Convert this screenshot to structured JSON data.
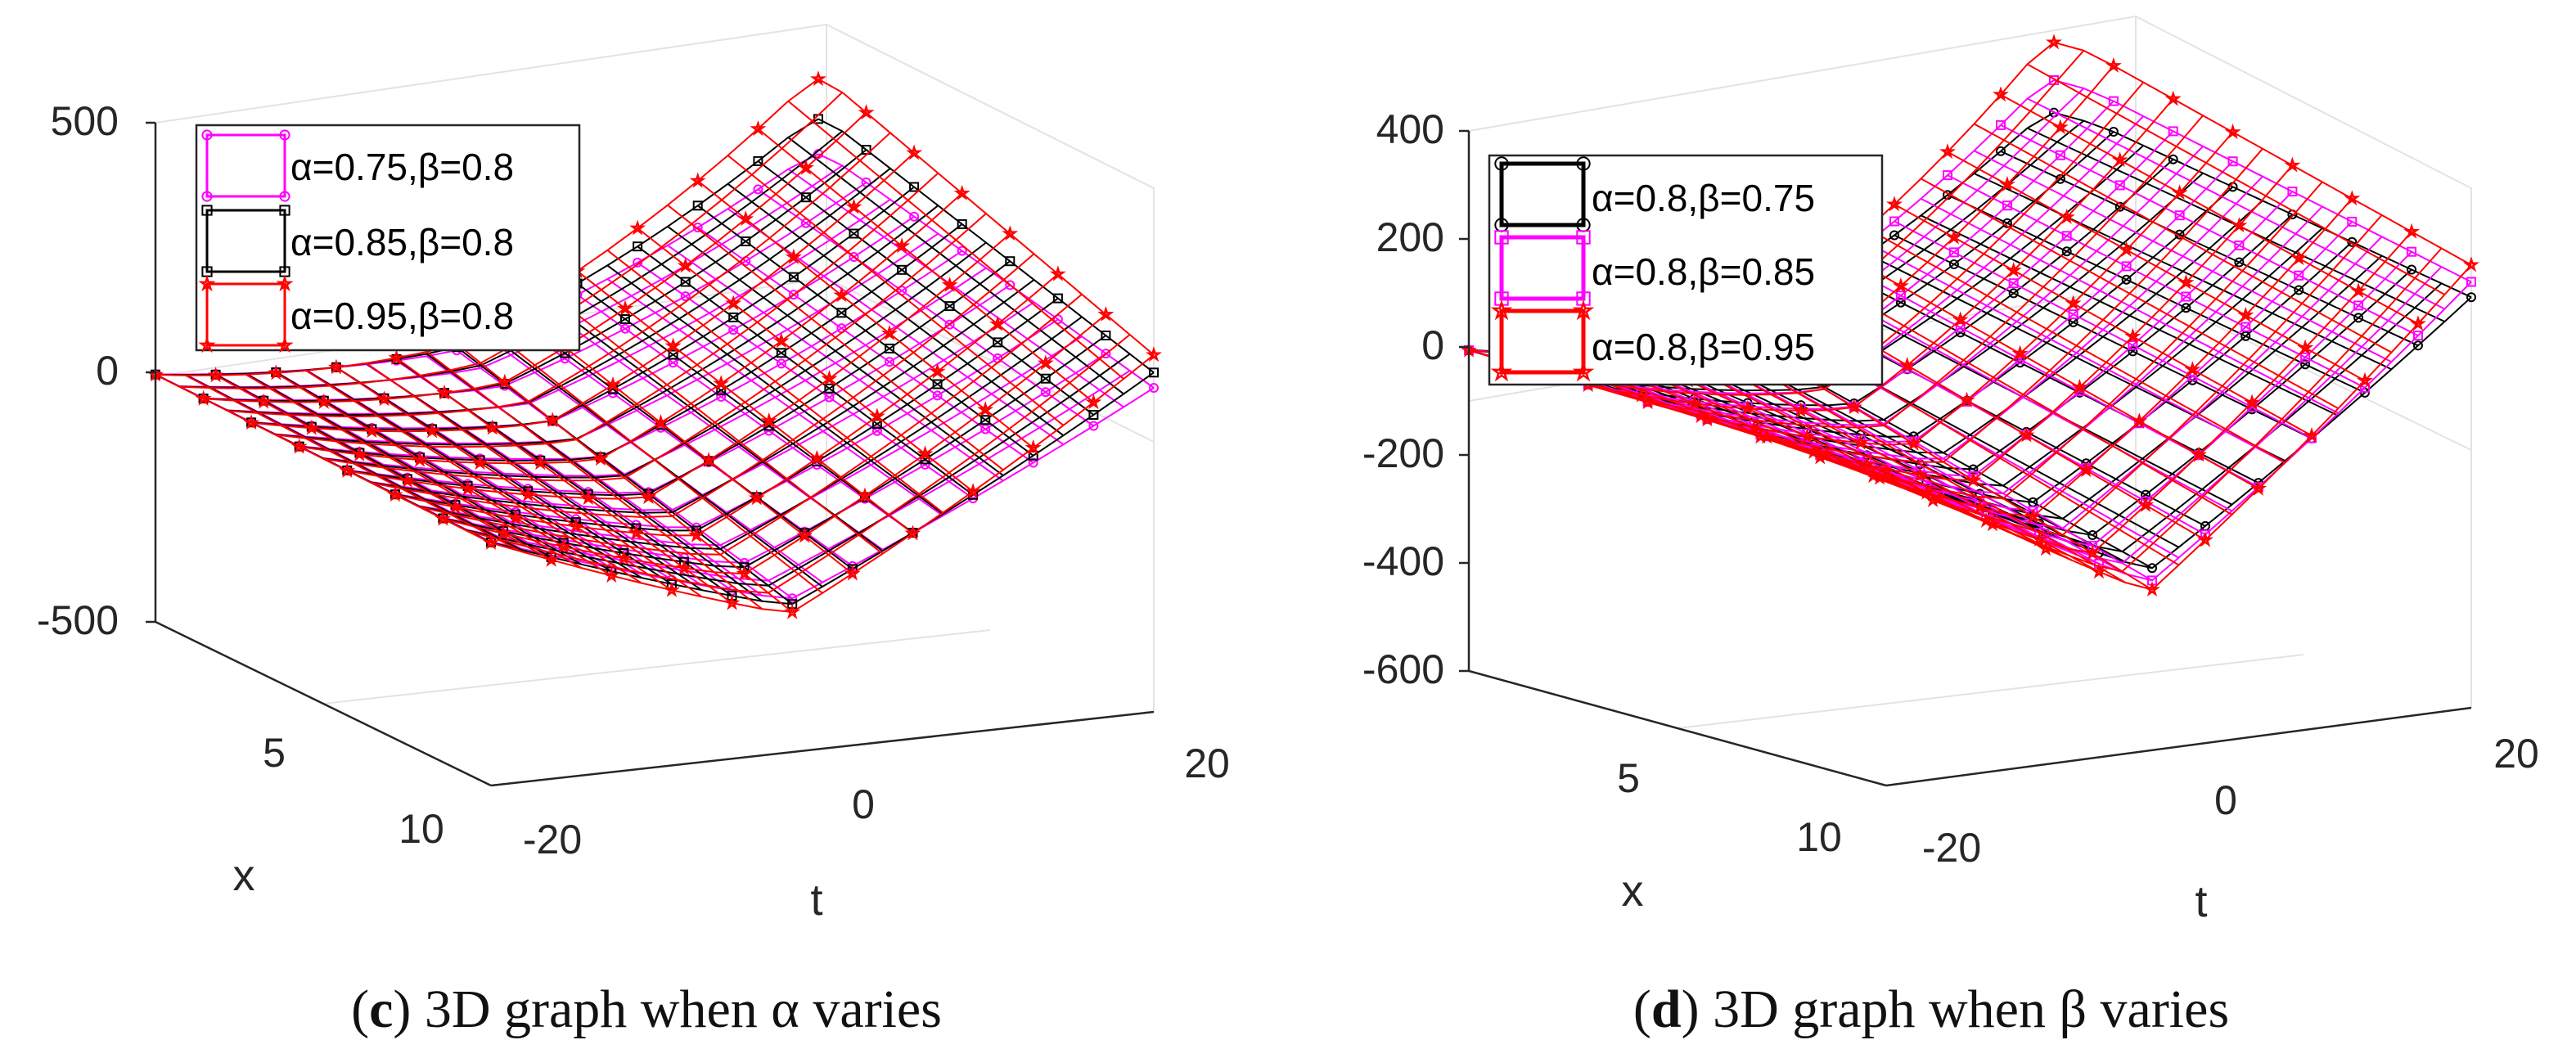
{
  "chart_data": [
    {
      "id": "c",
      "type": "3d-surface",
      "caption_label": "c",
      "caption_text": "3D graph when α varies",
      "zlim": [
        -500,
        500
      ],
      "xlim": [
        0,
        10
      ],
      "tlim": [
        -20,
        20
      ],
      "z_ticks": [
        "500",
        "0",
        "-500"
      ],
      "x_ticks": [
        "5",
        "10"
      ],
      "t_ticks": [
        "-20",
        "0",
        "20"
      ],
      "xlabel": "x",
      "tlabel": "t",
      "legend_position": "top-left",
      "series": [
        {
          "name": "α=0.75,β=0.8",
          "alpha": "0.75",
          "beta": "0.8",
          "color": "#ff00ff",
          "marker": "circle",
          "z_low": -390,
          "z_high": 290
        },
        {
          "name": "α=0.85,β=0.8",
          "alpha": "0.85",
          "beta": "0.8",
          "color": "#000000",
          "marker": "square",
          "z_low": -420,
          "z_high": 360
        },
        {
          "name": "α=0.95,β=0.8",
          "alpha": "0.95",
          "beta": "0.8",
          "color": "#ff0000",
          "marker": "star",
          "z_low": -460,
          "z_high": 440
        }
      ]
    },
    {
      "id": "d",
      "type": "3d-surface",
      "caption_label": "d",
      "caption_text": "3D graph when β varies",
      "zlim": [
        -600,
        400
      ],
      "xlim": [
        0,
        10
      ],
      "tlim": [
        -20,
        20
      ],
      "z_ticks": [
        "400",
        "200",
        "0",
        "-200",
        "-400",
        "-600"
      ],
      "x_ticks": [
        "5",
        "10"
      ],
      "t_ticks": [
        "-20",
        "0",
        "20"
      ],
      "xlabel": "x",
      "tlabel": "t",
      "legend_position": "top-left",
      "series": [
        {
          "name": "α=0.8,β=0.75",
          "alpha": "0.8",
          "beta": "0.75",
          "color": "#000000",
          "marker": "circle",
          "z_low": -520,
          "z_high": 290
        },
        {
          "name": "α=0.8,β=0.85",
          "alpha": "0.8",
          "beta": "0.85",
          "color": "#ff00ff",
          "marker": "square",
          "z_low": -570,
          "z_high": 350
        },
        {
          "name": "α=0.8,β=0.95",
          "alpha": "0.8",
          "beta": "0.95",
          "color": "#ff0000",
          "marker": "star",
          "z_low": -610,
          "z_high": 420
        }
      ]
    }
  ]
}
